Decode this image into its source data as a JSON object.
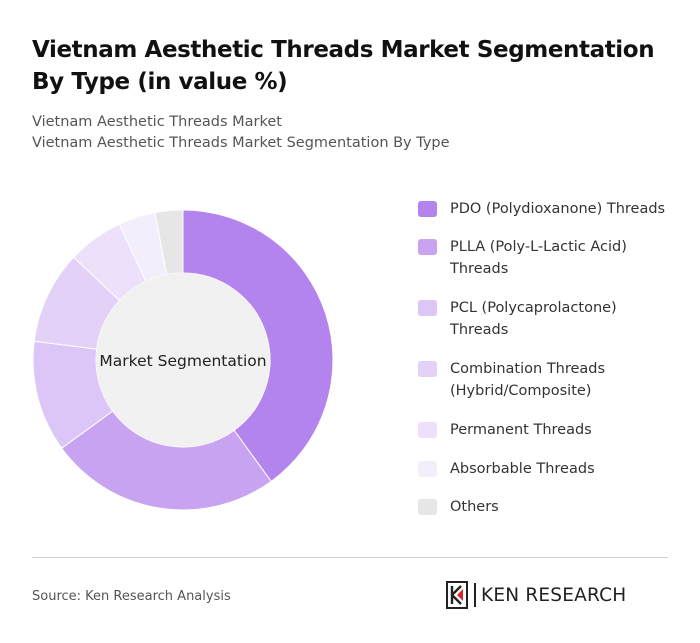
{
  "title": "Vietnam Aesthetic Threads Market Segmentation By Type (in value %)",
  "subtitle": {
    "line1": "Vietnam Aesthetic Threads Market",
    "line2": "Vietnam Aesthetic Threads Market Segmentation By Type"
  },
  "chart_data": {
    "type": "pie",
    "donut": true,
    "center_label": "Market Segmentation",
    "categories": [
      "PDO (Polydioxanone) Threads",
      "PLLA (Poly-L-Lactic Acid) Threads",
      "PCL (Polycaprolactone) Threads",
      "Combination Threads (Hybrid/Composite)",
      "Permanent Threads",
      "Absorbable Threads",
      "Others"
    ],
    "values": [
      40,
      25,
      12,
      10,
      6,
      4,
      3
    ],
    "colors": [
      "#b383ee",
      "#c8a3f2",
      "#dcc5f7",
      "#e3d1f8",
      "#ece0fa",
      "#f4eefc",
      "#e6e6e6"
    ],
    "legend_position": "right"
  },
  "center_fill": "#f1f1f1",
  "source": "Source: Ken Research Analysis",
  "brand": {
    "name": "KEN RESEARCH"
  }
}
